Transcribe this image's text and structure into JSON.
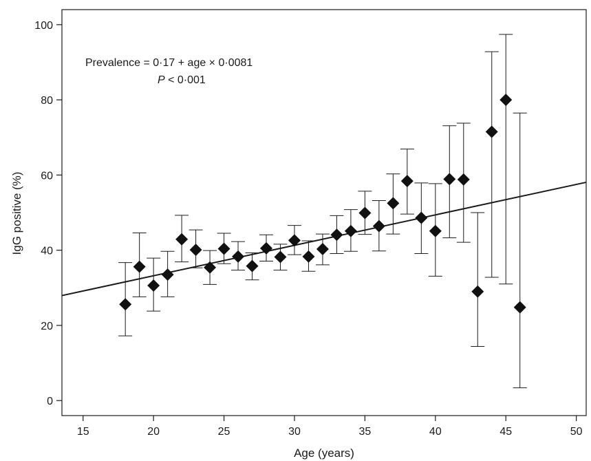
{
  "chart_data": {
    "type": "scatter",
    "xlabel": "Age (years)",
    "ylabel": "IgG positive (%)",
    "xlim": [
      13.5,
      50.7
    ],
    "ylim": [
      -4,
      104
    ],
    "x_ticks": [
      15,
      20,
      25,
      30,
      35,
      40,
      45,
      50
    ],
    "y_ticks": [
      0,
      20,
      40,
      60,
      80,
      100
    ],
    "grid": false,
    "annotation": {
      "equation": "Prevalence = 0·17 + age × 0·0081",
      "p_value_italic": "P",
      "p_value_rest": " < 0·001"
    },
    "regression_line": {
      "intercept": 17,
      "slope": 0.81
    },
    "points": [
      {
        "x": 18,
        "y": 25.6,
        "lo": 17.2,
        "hi": 36.7
      },
      {
        "x": 19,
        "y": 35.6,
        "lo": 27.6,
        "hi": 44.6
      },
      {
        "x": 20,
        "y": 30.6,
        "lo": 23.8,
        "hi": 37.9
      },
      {
        "x": 21,
        "y": 33.5,
        "lo": 27.6,
        "hi": 39.7
      },
      {
        "x": 22,
        "y": 42.9,
        "lo": 36.9,
        "hi": 49.3
      },
      {
        "x": 23,
        "y": 40.1,
        "lo": 35.3,
        "hi": 45.4
      },
      {
        "x": 24,
        "y": 35.4,
        "lo": 30.9,
        "hi": 39.9
      },
      {
        "x": 25,
        "y": 40.4,
        "lo": 36.4,
        "hi": 44.5
      },
      {
        "x": 26,
        "y": 38.3,
        "lo": 34.7,
        "hi": 42.3
      },
      {
        "x": 27,
        "y": 35.8,
        "lo": 32.1,
        "hi": 39.3
      },
      {
        "x": 28,
        "y": 40.5,
        "lo": 37.1,
        "hi": 44.1
      },
      {
        "x": 29,
        "y": 38.2,
        "lo": 34.7,
        "hi": 41.6
      },
      {
        "x": 30,
        "y": 42.6,
        "lo": 38.8,
        "hi": 46.6
      },
      {
        "x": 31,
        "y": 38.3,
        "lo": 34.4,
        "hi": 42.5
      },
      {
        "x": 32,
        "y": 40.3,
        "lo": 36.1,
        "hi": 44.3
      },
      {
        "x": 33,
        "y": 44.1,
        "lo": 39.1,
        "hi": 49.2
      },
      {
        "x": 34,
        "y": 45.1,
        "lo": 39.7,
        "hi": 50.8
      },
      {
        "x": 35,
        "y": 49.9,
        "lo": 44.2,
        "hi": 55.7
      },
      {
        "x": 36,
        "y": 46.4,
        "lo": 39.8,
        "hi": 53.2
      },
      {
        "x": 37,
        "y": 52.5,
        "lo": 44.3,
        "hi": 60.3
      },
      {
        "x": 38,
        "y": 58.4,
        "lo": 49.6,
        "hi": 66.9
      },
      {
        "x": 39,
        "y": 48.6,
        "lo": 39.1,
        "hi": 57.9
      },
      {
        "x": 40,
        "y": 45.1,
        "lo": 33.1,
        "hi": 57.7
      },
      {
        "x": 41,
        "y": 58.9,
        "lo": 43.3,
        "hi": 73.1
      },
      {
        "x": 42,
        "y": 58.8,
        "lo": 42.1,
        "hi": 73.8
      },
      {
        "x": 43,
        "y": 29.0,
        "lo": 14.4,
        "hi": 50.0
      },
      {
        "x": 44,
        "y": 71.5,
        "lo": 32.8,
        "hi": 92.8
      },
      {
        "x": 45,
        "y": 80.0,
        "lo": 31.0,
        "hi": 97.4
      },
      {
        "x": 46,
        "y": 24.8,
        "lo": 3.4,
        "hi": 76.5
      }
    ]
  }
}
